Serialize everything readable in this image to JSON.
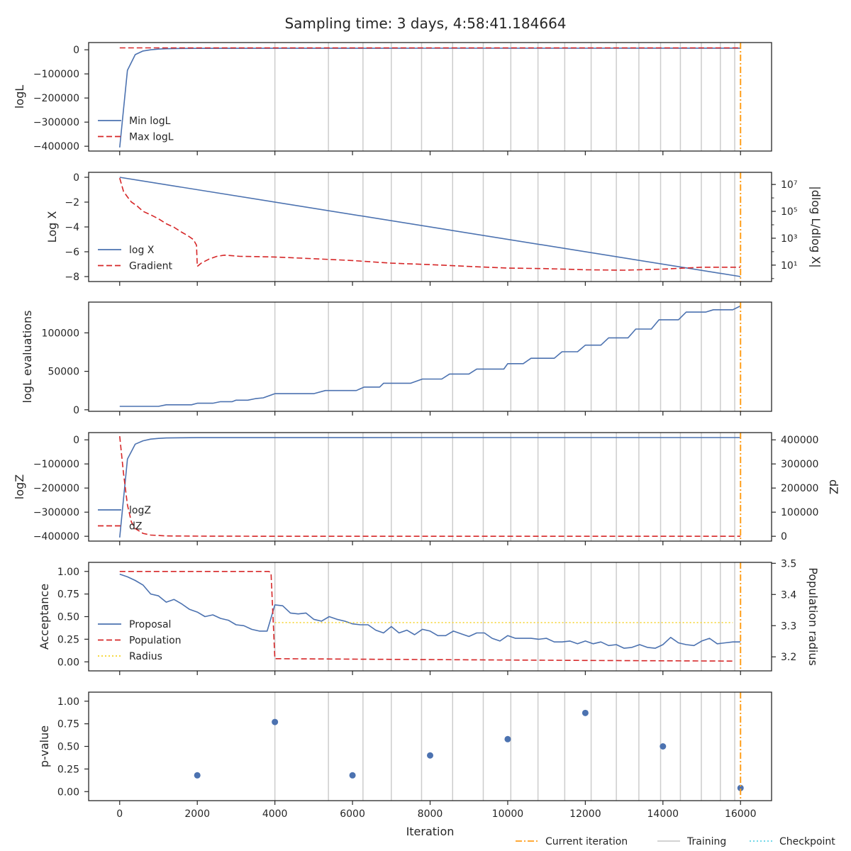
{
  "figure_title": "Sampling time: 3 days, 4:58:41.184664",
  "colors": {
    "blue": "#4c72b0",
    "red": "#d62728",
    "orange": "#ff9f1c",
    "yellow": "#f5d327",
    "cyan": "#5fd3e6",
    "training": "#cccccc",
    "frame": "#262626"
  },
  "chart_data": {
    "type": "line",
    "shared_x": {
      "label": "Iteration",
      "ticks": [
        0,
        2000,
        4000,
        6000,
        8000,
        10000,
        12000,
        14000,
        16000
      ],
      "tick_labels": [
        "0",
        "2000",
        "4000",
        "6000",
        "8000",
        "10000",
        "12000",
        "14000",
        "16000"
      ],
      "xlim": [
        -800,
        16800
      ]
    },
    "current_iteration": 16000,
    "training_iterations": [
      4000,
      5380,
      6270,
      7000,
      7780,
      8580,
      9370,
      10080,
      10780,
      11470,
      12150,
      12800,
      13380,
      13940,
      14450,
      14990,
      15480,
      15850
    ],
    "figure_legend": [
      "Current iteration",
      "Training",
      "Checkpoint"
    ],
    "panels": [
      {
        "ylabel": "logL",
        "ylim": [
          -420000,
          30000
        ],
        "yticks": [
          0,
          -100000,
          -200000,
          -300000,
          -400000
        ],
        "ytick_labels": [
          "0",
          "−100000",
          "−200000",
          "−300000",
          "−400000"
        ],
        "series": [
          {
            "name": "Min logL",
            "style": "solid",
            "color": "blue",
            "x": [
              0,
              200,
              400,
              600,
              800,
              1000,
              1200,
              1600,
              2000,
              4000,
              8000,
              12000,
              16000
            ],
            "y": [
              -405000,
              -85000,
              -20000,
              -5000,
              0,
              3000,
              4500,
              5500,
              6000,
              6300,
              6500,
              6600,
              6700
            ]
          },
          {
            "name": "Max logL",
            "style": "dashed",
            "color": "red",
            "x": [
              0,
              4000,
              8000,
              12000,
              16000
            ],
            "y": [
              8000,
              8000,
              8000,
              8000,
              8000
            ]
          }
        ],
        "legend": [
          "Min logL",
          "Max logL"
        ]
      },
      {
        "ylabel": "Log X",
        "ylim": [
          -8.4,
          0.4
        ],
        "yticks": [
          0,
          -2,
          -4,
          -6,
          -8
        ],
        "ytick_labels": [
          "0",
          "−2",
          "−4",
          "−6",
          "−8"
        ],
        "y2label": "|dlog L/dlog X|",
        "y2_scale": "log",
        "y2lim": [
          0.6,
          80000000
        ],
        "y2ticks": [
          10,
          1000,
          100000,
          10000000
        ],
        "y2tick_labels": [
          "10¹",
          "10³",
          "10⁵",
          "10⁷"
        ],
        "series": [
          {
            "name": "log X",
            "style": "solid",
            "color": "blue",
            "axis": "left",
            "x": [
              0,
              16000
            ],
            "y": [
              0,
              -8
            ]
          },
          {
            "name": "Gradient",
            "style": "dashed",
            "color": "red",
            "axis": "right",
            "x": [
              0,
              100,
              200,
              300,
              450,
              600,
              800,
              1000,
              1200,
              1400,
              1600,
              1750,
              1900,
              1980,
              2000,
              2100,
              2300,
              2500,
              2700,
              2900,
              3100,
              3500,
              4000,
              5000,
              6000,
              7000,
              8000,
              9000,
              10000,
              11000,
              12000,
              13000,
              14000,
              15000,
              16000
            ],
            "y": [
              30000000,
              3000000,
              1200000,
              500000,
              250000,
              100000,
              55000,
              28000,
              12000,
              6500,
              2800,
              1600,
              800,
              300,
              8,
              14,
              28,
              45,
              55,
              50,
              45,
              43,
              40,
              30,
              22,
              14,
              11,
              8,
              6,
              5.5,
              4.5,
              4.2,
              5,
              7,
              7
            ]
          }
        ],
        "legend": [
          "log X",
          "Gradient"
        ]
      },
      {
        "ylabel": "logL evaluations",
        "ylim": [
          -2000,
          140000
        ],
        "yticks": [
          0,
          50000,
          100000
        ],
        "ytick_labels": [
          "0",
          "50000",
          "100000"
        ],
        "series": [
          {
            "name": "logL evaluations",
            "style": "solid",
            "color": "blue",
            "x": [
              0,
              1000,
              1200,
              1850,
              2000,
              2400,
              2600,
              2900,
              3000,
              3300,
              3500,
              3700,
              4000,
              5000,
              5300,
              6100,
              6300,
              6700,
              6800,
              7500,
              7800,
              8300,
              8500,
              9000,
              9200,
              9900,
              10000,
              10400,
              10600,
              11200,
              11400,
              11800,
              12000,
              12400,
              12600,
              13100,
              13300,
              13700,
              13900,
              14400,
              14600,
              15100,
              15300,
              15800,
              16000
            ],
            "y": [
              4500,
              4500,
              6500,
              6500,
              8500,
              8500,
              10500,
              10500,
              12500,
              12500,
              14500,
              15500,
              21000,
              21000,
              25000,
              25000,
              29500,
              29500,
              34500,
              34500,
              40000,
              40000,
              46500,
              46500,
              53000,
              53000,
              60000,
              60000,
              67000,
              67000,
              75500,
              75500,
              84000,
              84000,
              93500,
              93500,
              105000,
              105000,
              117000,
              117000,
              127000,
              127000,
              130000,
              130000,
              135000
            ]
          }
        ]
      },
      {
        "ylabel": "logZ",
        "ylim": [
          -420000,
          30000
        ],
        "yticks": [
          0,
          -100000,
          -200000,
          -300000,
          -400000
        ],
        "ytick_labels": [
          "0",
          "−100000",
          "−200000",
          "−300000",
          "−400000"
        ],
        "y2label": "dZ",
        "y2lim": [
          -20000,
          430000
        ],
        "y2ticks": [
          0,
          100000,
          200000,
          300000,
          400000
        ],
        "y2tick_labels": [
          "0",
          "100000",
          "200000",
          "300000",
          "400000"
        ],
        "series": [
          {
            "name": "logZ",
            "style": "solid",
            "color": "blue",
            "axis": "left",
            "x": [
              0,
              200,
              400,
              600,
              800,
              1000,
              1200,
              1600,
              2000,
              4000,
              8000,
              12000,
              16000
            ],
            "y": [
              -405000,
              -80000,
              -18000,
              -4000,
              3000,
              6000,
              7500,
              8500,
              9000,
              9200,
              9300,
              9400,
              9400
            ]
          },
          {
            "name": "dZ",
            "style": "dashed",
            "color": "red",
            "axis": "right",
            "x": [
              0,
              100,
              200,
              300,
              400,
              600,
              800,
              1200,
              2000,
              4000,
              8000,
              12000,
              16000
            ],
            "y": [
              415000,
              260000,
              130000,
              60000,
              32000,
              12000,
              5000,
              1500,
              500,
              100,
              0,
              0,
              0
            ]
          }
        ],
        "legend": [
          "logZ",
          "dZ"
        ]
      },
      {
        "ylabel": "Acceptance",
        "ylim": [
          -0.1,
          1.1
        ],
        "yticks": [
          0,
          0.25,
          0.5,
          0.75,
          1.0
        ],
        "ytick_labels": [
          "0.00",
          "0.25",
          "0.50",
          "0.75",
          "1.00"
        ],
        "y2label": "Population radius",
        "y2lim": [
          3.155,
          3.503
        ],
        "y2ticks": [
          3.2,
          3.3,
          3.4,
          3.5
        ],
        "y2tick_labels": [
          "3.2",
          "3.3",
          "3.4",
          "3.5"
        ],
        "series": [
          {
            "name": "Proposal",
            "style": "solid",
            "color": "blue",
            "axis": "left",
            "x": [
              0,
              200,
              400,
              600,
              800,
              1000,
              1200,
              1400,
              1600,
              1800,
              2000,
              2200,
              2400,
              2600,
              2800,
              3000,
              3200,
              3400,
              3600,
              3800,
              4000,
              4200,
              4400,
              4600,
              4800,
              5000,
              5200,
              5400,
              5600,
              5800,
              6000,
              6200,
              6400,
              6600,
              6800,
              7000,
              7200,
              7400,
              7600,
              7800,
              8000,
              8200,
              8400,
              8600,
              8800,
              9000,
              9200,
              9400,
              9600,
              9800,
              10000,
              10200,
              10400,
              10600,
              10800,
              11000,
              11200,
              11400,
              11600,
              11800,
              12000,
              12200,
              12400,
              12600,
              12800,
              13000,
              13200,
              13400,
              13600,
              13800,
              14000,
              14200,
              14400,
              14600,
              14800,
              15000,
              15200,
              15400,
              15600,
              15800,
              16000
            ],
            "y": [
              0.97,
              0.94,
              0.9,
              0.85,
              0.75,
              0.73,
              0.66,
              0.69,
              0.64,
              0.58,
              0.55,
              0.5,
              0.52,
              0.48,
              0.46,
              0.41,
              0.4,
              0.36,
              0.34,
              0.34,
              0.63,
              0.62,
              0.54,
              0.53,
              0.54,
              0.47,
              0.45,
              0.5,
              0.47,
              0.45,
              0.42,
              0.41,
              0.41,
              0.35,
              0.32,
              0.39,
              0.32,
              0.35,
              0.3,
              0.36,
              0.34,
              0.29,
              0.29,
              0.34,
              0.31,
              0.28,
              0.32,
              0.32,
              0.26,
              0.23,
              0.29,
              0.26,
              0.26,
              0.26,
              0.25,
              0.26,
              0.22,
              0.22,
              0.23,
              0.2,
              0.23,
              0.2,
              0.22,
              0.18,
              0.19,
              0.15,
              0.16,
              0.19,
              0.16,
              0.15,
              0.19,
              0.27,
              0.21,
              0.19,
              0.18,
              0.23,
              0.26,
              0.2,
              0.21,
              0.22,
              0.22
            ]
          },
          {
            "name": "Population",
            "style": "dashed",
            "color": "red",
            "axis": "left",
            "x": [
              0,
              3850,
              3900,
              4000,
              8000,
              12000,
              15800
            ],
            "y": [
              1.0,
              1.0,
              0.98,
              0.035,
              0.025,
              0.015,
              0.008
            ]
          },
          {
            "name": "Radius",
            "style": "dotted",
            "color": "yellow",
            "axis": "right",
            "x": [
              4000,
              15800
            ],
            "y": [
              3.31,
              3.31
            ]
          }
        ],
        "legend": [
          "Proposal",
          "Population",
          "Radius"
        ]
      },
      {
        "type": "scatter",
        "ylabel": "p-value",
        "ylim": [
          -0.1,
          1.1
        ],
        "yticks": [
          0,
          0.25,
          0.5,
          0.75,
          1.0
        ],
        "ytick_labels": [
          "0.00",
          "0.25",
          "0.50",
          "0.75",
          "1.00"
        ],
        "series": [
          {
            "name": "p-value",
            "color": "blue",
            "x": [
              2000,
              4000,
              6000,
              8000,
              10000,
              12000,
              14000,
              16000
            ],
            "y": [
              0.18,
              0.77,
              0.18,
              0.4,
              0.58,
              0.87,
              0.5,
              0.04
            ]
          }
        ]
      }
    ]
  }
}
